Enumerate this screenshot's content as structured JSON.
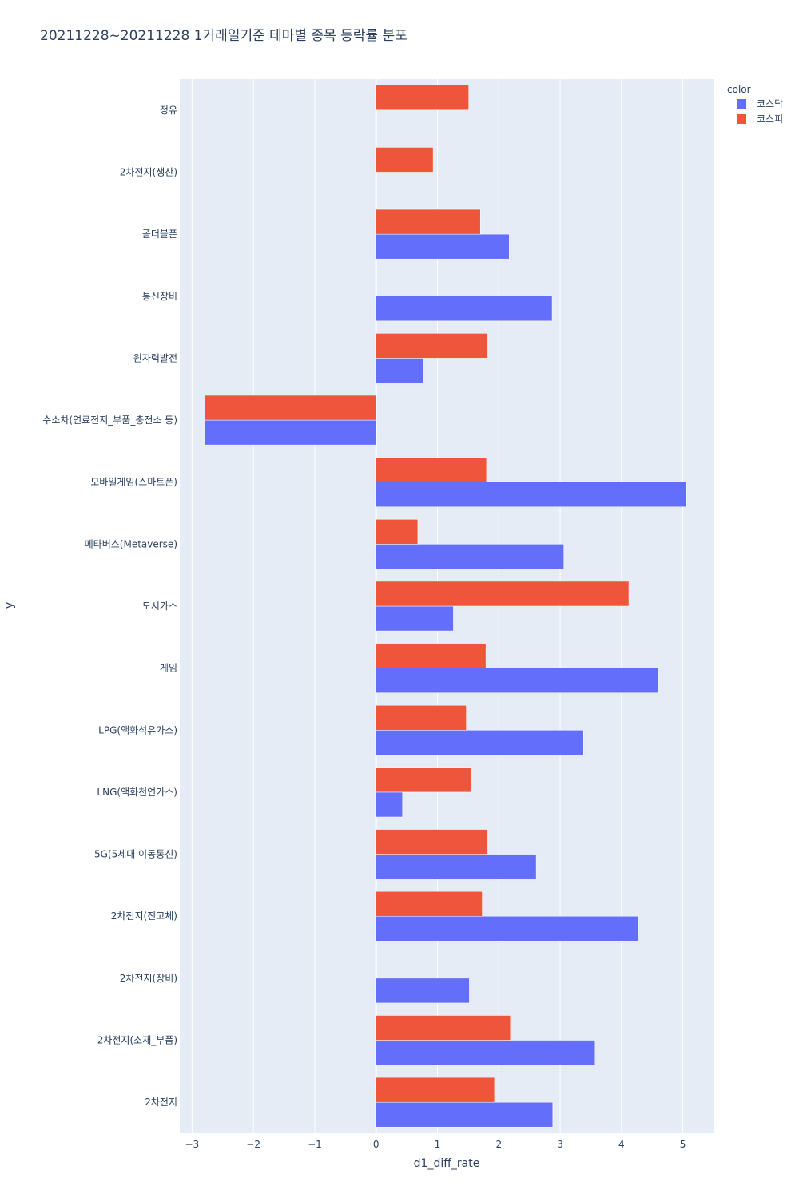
{
  "chart_data": {
    "type": "bar",
    "orientation": "horizontal",
    "title": "20211228~20211228 1거래일기준 테마별 종목 등락률 분포",
    "xlabel": "d1_diff_rate",
    "ylabel": "y",
    "xlim": [
      -3.2,
      5.5
    ],
    "xticks": [
      -3,
      -2,
      -1,
      0,
      1,
      2,
      3,
      4,
      5
    ],
    "xtick_labels": [
      "−3",
      "−2",
      "−1",
      "0",
      "1",
      "2",
      "3",
      "4",
      "5"
    ],
    "grid": true,
    "legend": {
      "title": "color",
      "position": "top-right"
    },
    "categories": [
      "정유",
      "2차전지(생산)",
      "폴더블폰",
      "통신장비",
      "원자력발전",
      "수소차(연료전지_부품_충전소 등)",
      "모바일게임(스마트폰)",
      "메타버스(Metaverse)",
      "도시가스",
      "게임",
      "LPG(액화석유가스)",
      "LNG(액화천연가스)",
      "5G(5세대 이동통신)",
      "2차전지(전고체)",
      "2차전지(장비)",
      "2차전지(소재_부품)",
      "2차전지"
    ],
    "series": [
      {
        "name": "코스닥",
        "color": "#636efa",
        "values": [
          null,
          null,
          2.17,
          2.87,
          0.77,
          -2.79,
          5.06,
          3.06,
          1.26,
          4.6,
          3.38,
          0.43,
          2.61,
          4.27,
          1.52,
          3.57,
          2.88
        ]
      },
      {
        "name": "코스피",
        "color": "#ef553b",
        "values": [
          1.51,
          0.93,
          1.7,
          null,
          1.82,
          -2.79,
          1.8,
          0.68,
          4.12,
          1.79,
          1.47,
          1.55,
          1.82,
          1.73,
          null,
          2.19,
          1.93
        ]
      }
    ]
  }
}
